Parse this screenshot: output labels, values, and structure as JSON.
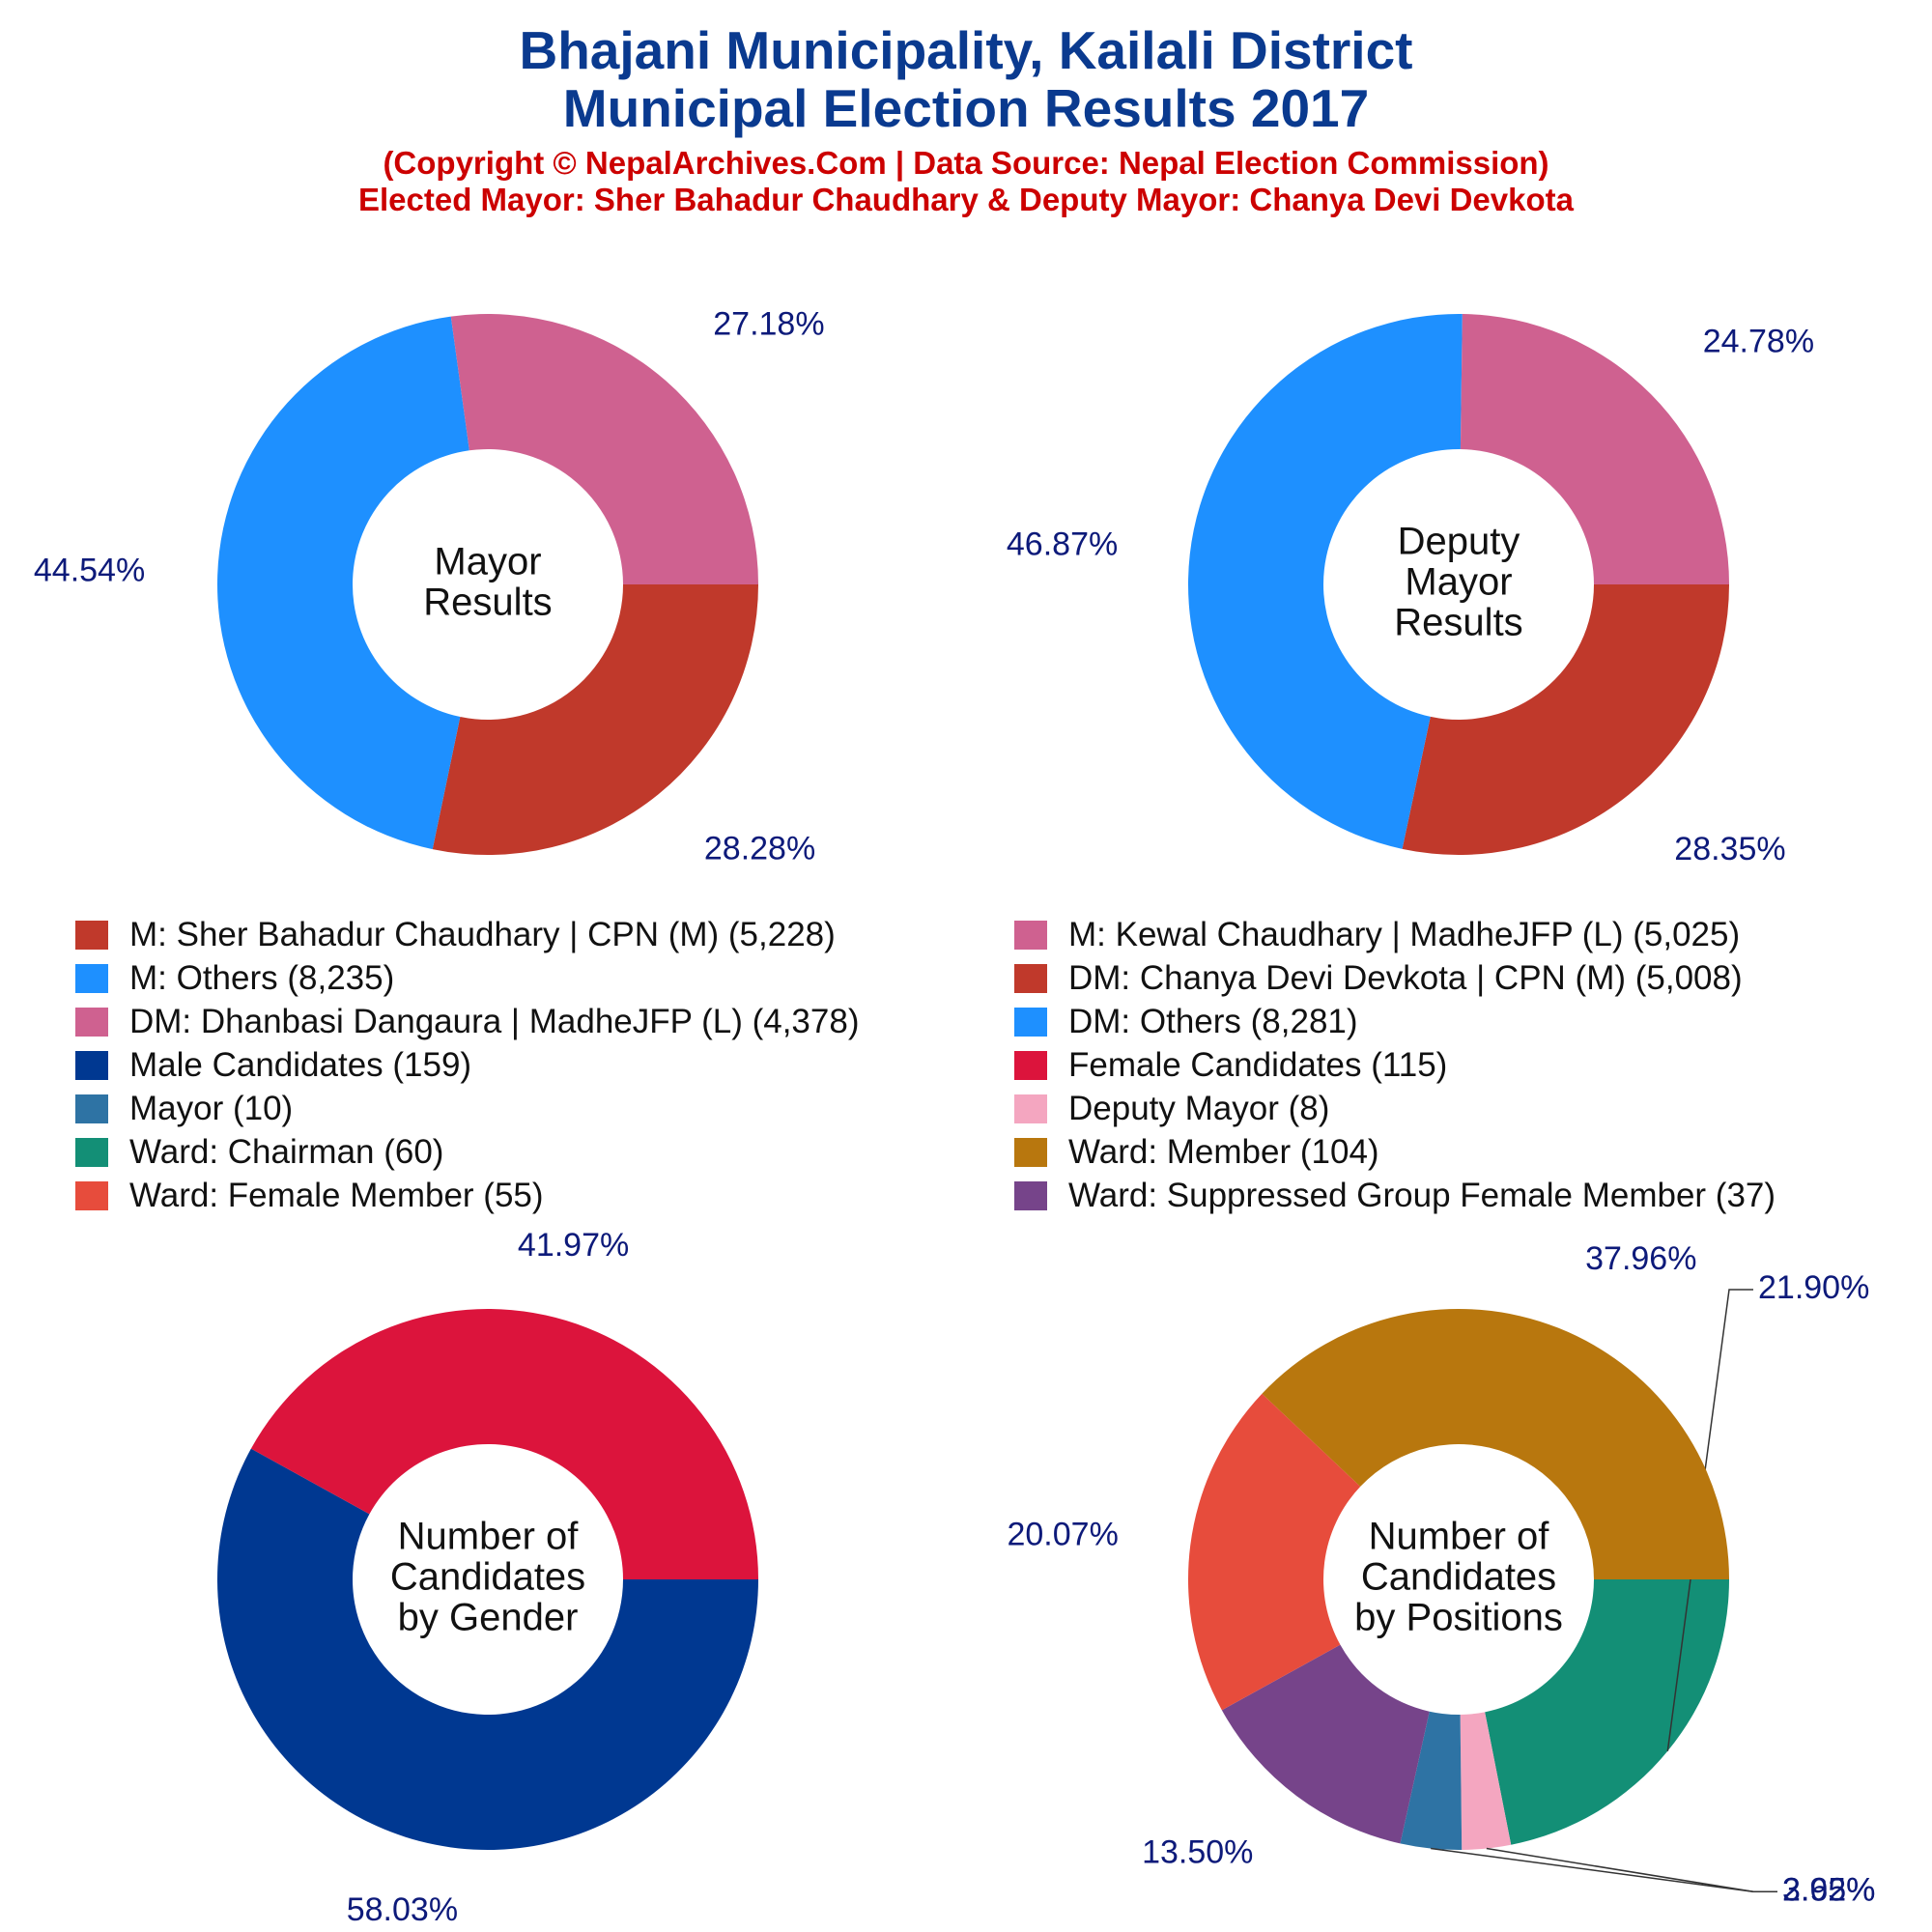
{
  "header": {
    "title_line1": "Bhajani Municipality, Kailali District",
    "title_line2": "Municipal Election Results 2017",
    "subtitle_line1": "(Copyright © NepalArchives.Com | Data Source: Nepal Election Commission)",
    "subtitle_line2": "Elected Mayor: Sher Bahadur Chaudhary & Deputy Mayor: Chanya Devi Devkota"
  },
  "colors": {
    "title": "#0a3a8f",
    "subtitle": "#cc0000",
    "percent_labels": "#0d1a7a"
  },
  "legend": [
    {
      "label": "M: Sher Bahadur Chaudhary | CPN (M) (5,228)",
      "color": "#c0392b"
    },
    {
      "label": "M: Kewal Chaudhary | MadheJFP (L) (5,025)",
      "color": "#cf6190"
    },
    {
      "label": "M: Others (8,235)",
      "color": "#1e90ff"
    },
    {
      "label": "DM: Chanya Devi Devkota | CPN (M) (5,008)",
      "color": "#c0392b"
    },
    {
      "label": "DM: Dhanbasi Dangaura | MadheJFP (L) (4,378)",
      "color": "#cf6190"
    },
    {
      "label": "DM: Others (8,281)",
      "color": "#1e90ff"
    },
    {
      "label": "Male Candidates (159)",
      "color": "#003891"
    },
    {
      "label": "Female Candidates (115)",
      "color": "#dc143c"
    },
    {
      "label": "Mayor (10)",
      "color": "#2e73a4"
    },
    {
      "label": "Deputy Mayor (8)",
      "color": "#f4a6c0"
    },
    {
      "label": "Ward: Chairman (60)",
      "color": "#138f76"
    },
    {
      "label": "Ward: Member (104)",
      "color": "#b8770e"
    },
    {
      "label": "Ward: Female Member (55)",
      "color": "#e74c3c"
    },
    {
      "label": "Ward: Suppressed Group Female Member (37)",
      "color": "#76448a"
    }
  ],
  "chart_data": [
    {
      "type": "pie",
      "center_label": [
        "Mayor",
        "Results"
      ],
      "slices": [
        {
          "name": "M: Sher Bahadur Chaudhary | CPN (M)",
          "value": 5228,
          "label": "28.28%",
          "color": "#c0392b"
        },
        {
          "name": "M: Others",
          "value": 8235,
          "label": "44.54%",
          "color": "#1e90ff"
        },
        {
          "name": "M: Kewal Chaudhary | MadheJFP (L)",
          "value": 5025,
          "label": "27.18%",
          "color": "#cf6190"
        }
      ]
    },
    {
      "type": "pie",
      "center_label": [
        "Deputy",
        "Mayor",
        "Results"
      ],
      "slices": [
        {
          "name": "DM: Chanya Devi Devkota | CPN (M)",
          "value": 5008,
          "label": "28.35%",
          "color": "#c0392b"
        },
        {
          "name": "DM: Others",
          "value": 8281,
          "label": "46.87%",
          "color": "#1e90ff"
        },
        {
          "name": "DM: Dhanbasi Dangaura | MadheJFP (L)",
          "value": 4378,
          "label": "24.78%",
          "color": "#cf6190"
        }
      ]
    },
    {
      "type": "pie",
      "center_label": [
        "Number of",
        "Candidates",
        "by Gender"
      ],
      "slices": [
        {
          "name": "Male Candidates",
          "value": 159,
          "label": "58.03%",
          "color": "#003891"
        },
        {
          "name": "Female Candidates",
          "value": 115,
          "label": "41.97%",
          "color": "#dc143c"
        }
      ]
    },
    {
      "type": "pie",
      "center_label": [
        "Number of",
        "Candidates",
        "by Positions"
      ],
      "slices": [
        {
          "name": "Ward: Chairman",
          "value": 60,
          "label": "21.90%",
          "color": "#138f76"
        },
        {
          "name": "Deputy Mayor",
          "value": 8,
          "label": "2.92%",
          "color": "#f4a6c0"
        },
        {
          "name": "Mayor",
          "value": 10,
          "label": "3.65%",
          "color": "#2e73a4"
        },
        {
          "name": "Ward: Suppressed Group Female Member",
          "value": 37,
          "label": "13.50%",
          "color": "#76448a"
        },
        {
          "name": "Ward: Female Member",
          "value": 55,
          "label": "20.07%",
          "color": "#e74c3c"
        },
        {
          "name": "Ward: Member",
          "value": 104,
          "label": "37.96%",
          "color": "#b8770e"
        }
      ]
    }
  ]
}
